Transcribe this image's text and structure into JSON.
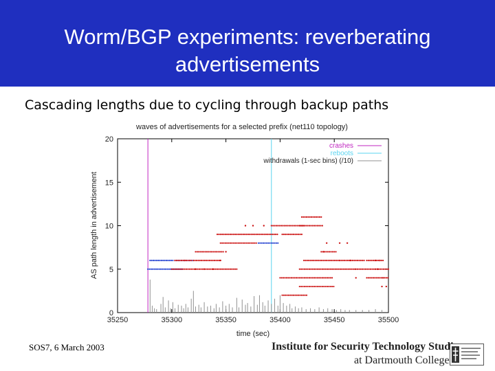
{
  "slide": {
    "title": "Worm/BGP experiments: reverberating advertisements",
    "subtitle": "Cascading lengths due to cycling through backup paths",
    "footer_left": "SOS7, 6 March 2003",
    "institute_line1": "Institute for Security Technology Studies",
    "institute_line2": "at Dartmouth College"
  },
  "colors": {
    "title_bar": "#1f2fbf",
    "crashes": "#c026c0",
    "reboots": "#5ad4f0",
    "withdrawals": "#909090",
    "blue_points": "#2340d0",
    "red_points": "#cc1414"
  },
  "chart_data": {
    "type": "scatter",
    "title": "waves of advertisements for a selected prefix (net110 topology)",
    "xlabel": "time (sec)",
    "ylabel": "AS path length in advertisement",
    "xlim": [
      35250,
      35500
    ],
    "ylim": [
      0,
      20
    ],
    "xticks": [
      35250,
      35300,
      35350,
      35400,
      35450,
      35500
    ],
    "yticks": [
      0,
      5,
      10,
      15,
      20
    ],
    "legend_position": "top-right",
    "legend": [
      "crashes",
      "reboots",
      "withdrawals (1-sec bins) (/10)"
    ],
    "crashes_x": [
      35278
    ],
    "reboots_x": [
      35392
    ],
    "series": [
      {
        "color": "blue",
        "segments": [
          {
            "y": 5,
            "x_from": 35278,
            "x_to": 35310
          },
          {
            "y": 6,
            "x_from": 35280,
            "x_to": 35302
          },
          {
            "y": 6,
            "x_from": 35303,
            "x_to": 35320
          },
          {
            "y": 8,
            "x_from": 35380,
            "x_to": 35398
          }
        ]
      },
      {
        "color": "red",
        "segments": [
          {
            "y": 6,
            "x_from": 35303,
            "x_to": 35318
          },
          {
            "y": 6,
            "x_from": 35320,
            "x_to": 35345
          },
          {
            "y": 5,
            "x_from": 35300,
            "x_to": 35360
          },
          {
            "y": 7,
            "x_from": 35322,
            "x_to": 35348
          },
          {
            "y": 8,
            "x_from": 35345,
            "x_to": 35378
          },
          {
            "y": 9,
            "x_from": 35342,
            "x_to": 35398
          },
          {
            "y": 10,
            "x_from": 35392,
            "x_to": 35422
          },
          {
            "y": 10,
            "x_from": 35418,
            "x_to": 35440
          },
          {
            "y": 11,
            "x_from": 35420,
            "x_to": 35438
          },
          {
            "y": 9,
            "x_from": 35402,
            "x_to": 35420
          },
          {
            "y": 6,
            "x_from": 35422,
            "x_to": 35455
          },
          {
            "y": 5,
            "x_from": 35418,
            "x_to": 35470
          },
          {
            "y": 4,
            "x_from": 35400,
            "x_to": 35448
          },
          {
            "y": 3,
            "x_from": 35418,
            "x_to": 35450
          },
          {
            "y": 2,
            "x_from": 35402,
            "x_to": 35425
          },
          {
            "y": 7,
            "x_from": 35438,
            "x_to": 35452
          },
          {
            "y": 6,
            "x_from": 35455,
            "x_to": 35478
          },
          {
            "y": 5,
            "x_from": 35470,
            "x_to": 35488
          },
          {
            "y": 4,
            "x_from": 35480,
            "x_to": 35500
          },
          {
            "y": 6,
            "x_from": 35480,
            "x_to": 35495
          },
          {
            "y": 5,
            "x_from": 35488,
            "x_to": 35500
          }
        ]
      }
    ],
    "scattered_points": [
      {
        "x": 35368,
        "y": 10
      },
      {
        "x": 35375,
        "y": 10
      },
      {
        "x": 35385,
        "y": 10
      },
      {
        "x": 35455,
        "y": 8
      },
      {
        "x": 35462,
        "y": 8
      },
      {
        "x": 35443,
        "y": 8
      },
      {
        "x": 35488,
        "y": 6
      },
      {
        "x": 35492,
        "y": 6
      },
      {
        "x": 35495,
        "y": 4
      },
      {
        "x": 35494,
        "y": 3
      },
      {
        "x": 35498,
        "y": 3
      },
      {
        "x": 35490,
        "y": 5
      },
      {
        "x": 35322,
        "y": 5
      },
      {
        "x": 35330,
        "y": 5
      },
      {
        "x": 35338,
        "y": 5
      },
      {
        "x": 35312,
        "y": 6
      },
      {
        "x": 35345,
        "y": 6
      },
      {
        "x": 35350,
        "y": 7
      },
      {
        "x": 35440,
        "y": 7
      },
      {
        "x": 35470,
        "y": 4
      },
      {
        "x": 35465,
        "y": 6
      }
    ],
    "withdrawals_spikes": [
      {
        "x": 35280,
        "h": 3.8
      },
      {
        "x": 35282,
        "h": 0.8
      },
      {
        "x": 35284,
        "h": 0.5
      },
      {
        "x": 35286,
        "h": 0.4
      },
      {
        "x": 35290,
        "h": 1.0
      },
      {
        "x": 35292,
        "h": 1.8
      },
      {
        "x": 35294,
        "h": 0.6
      },
      {
        "x": 35297,
        "h": 1.4
      },
      {
        "x": 35299,
        "h": 0.5
      },
      {
        "x": 35301,
        "h": 1.2
      },
      {
        "x": 35303,
        "h": 0.5
      },
      {
        "x": 35306,
        "h": 0.9
      },
      {
        "x": 35309,
        "h": 0.8
      },
      {
        "x": 35311,
        "h": 0.5
      },
      {
        "x": 35313,
        "h": 1.0
      },
      {
        "x": 35315,
        "h": 0.6
      },
      {
        "x": 35318,
        "h": 1.6
      },
      {
        "x": 35320,
        "h": 2.5
      },
      {
        "x": 35322,
        "h": 0.7
      },
      {
        "x": 35325,
        "h": 0.9
      },
      {
        "x": 35327,
        "h": 0.6
      },
      {
        "x": 35330,
        "h": 1.2
      },
      {
        "x": 35333,
        "h": 0.7
      },
      {
        "x": 35336,
        "h": 0.8
      },
      {
        "x": 35339,
        "h": 0.5
      },
      {
        "x": 35341,
        "h": 1.0
      },
      {
        "x": 35344,
        "h": 0.6
      },
      {
        "x": 35347,
        "h": 1.3
      },
      {
        "x": 35350,
        "h": 0.8
      },
      {
        "x": 35353,
        "h": 1.0
      },
      {
        "x": 35356,
        "h": 0.6
      },
      {
        "x": 35360,
        "h": 1.7
      },
      {
        "x": 35362,
        "h": 0.6
      },
      {
        "x": 35365,
        "h": 1.5
      },
      {
        "x": 35368,
        "h": 0.9
      },
      {
        "x": 35370,
        "h": 1.1
      },
      {
        "x": 35373,
        "h": 0.7
      },
      {
        "x": 35376,
        "h": 1.9
      },
      {
        "x": 35379,
        "h": 0.9
      },
      {
        "x": 35381,
        "h": 2.0
      },
      {
        "x": 35384,
        "h": 1.2
      },
      {
        "x": 35386,
        "h": 0.8
      },
      {
        "x": 35389,
        "h": 1.4
      },
      {
        "x": 35392,
        "h": 1.0
      },
      {
        "x": 35395,
        "h": 1.6
      },
      {
        "x": 35398,
        "h": 0.8
      },
      {
        "x": 35400,
        "h": 2.0
      },
      {
        "x": 35403,
        "h": 1.1
      },
      {
        "x": 35406,
        "h": 0.8
      },
      {
        "x": 35409,
        "h": 1.0
      },
      {
        "x": 35411,
        "h": 0.5
      },
      {
        "x": 35414,
        "h": 0.7
      },
      {
        "x": 35417,
        "h": 0.5
      },
      {
        "x": 35420,
        "h": 0.6
      },
      {
        "x": 35424,
        "h": 0.4
      },
      {
        "x": 35428,
        "h": 0.5
      },
      {
        "x": 35432,
        "h": 0.4
      },
      {
        "x": 35436,
        "h": 0.6
      },
      {
        "x": 35440,
        "h": 0.4
      },
      {
        "x": 35444,
        "h": 0.5
      },
      {
        "x": 35448,
        "h": 0.4
      },
      {
        "x": 35452,
        "h": 0.3
      },
      {
        "x": 35456,
        "h": 0.4
      },
      {
        "x": 35460,
        "h": 0.3
      },
      {
        "x": 35464,
        "h": 0.3
      },
      {
        "x": 35470,
        "h": 0.3
      },
      {
        "x": 35476,
        "h": 0.3
      },
      {
        "x": 35482,
        "h": 0.3
      },
      {
        "x": 35488,
        "h": 0.4
      },
      {
        "x": 35494,
        "h": 0.3
      }
    ]
  }
}
